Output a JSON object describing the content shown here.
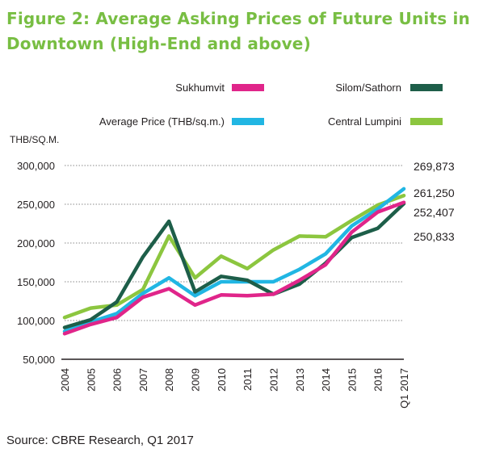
{
  "figure": {
    "title": "Figure 2: Average Asking Prices of Future Units in Downtown (High-End and above)",
    "source": "Source: CBRE Research, Q1 2017"
  },
  "chart_data": {
    "type": "line",
    "ylabel": "THB/SQ.M.",
    "ylim": [
      50000,
      300000
    ],
    "y_ticks": [
      "300,000",
      "250,000",
      "200,000",
      "150,000",
      "100,000",
      "50,000"
    ],
    "y_tick_values": [
      300000,
      250000,
      200000,
      150000,
      100000,
      50000
    ],
    "categories": [
      "2004",
      "2005",
      "2006",
      "2007",
      "2008",
      "2009",
      "2010",
      "2011",
      "2012",
      "2013",
      "2014",
      "2015",
      "2016",
      "Q1 2017"
    ],
    "grid": true,
    "legend_position": "top",
    "series": [
      {
        "name": "Sukhumvit",
        "color": "#e0258a",
        "values": [
          83000,
          95000,
          104000,
          130000,
          141000,
          120000,
          133000,
          132000,
          134000,
          152000,
          172000,
          214000,
          240000,
          252407
        ]
      },
      {
        "name": "Silom/Sathorn",
        "color": "#1d5e49",
        "values": [
          91000,
          101000,
          124000,
          182000,
          228000,
          137000,
          157000,
          152000,
          134000,
          147000,
          174000,
          207000,
          219000,
          250833
        ]
      },
      {
        "name": "Average Price (THB/sq.m.)",
        "color": "#21b6e3",
        "values": [
          86000,
          98000,
          109000,
          135000,
          155000,
          132000,
          150000,
          150000,
          150000,
          166000,
          186000,
          222000,
          244000,
          269873
        ]
      },
      {
        "name": "Central Lumpini",
        "color": "#8cc63f",
        "values": [
          104000,
          116000,
          120000,
          140000,
          209000,
          155000,
          183000,
          167000,
          191000,
          209000,
          208000,
          229000,
          249000,
          261250
        ]
      }
    ],
    "end_labels": [
      "269,873",
      "261,250",
      "252,407",
      "250,833"
    ]
  }
}
